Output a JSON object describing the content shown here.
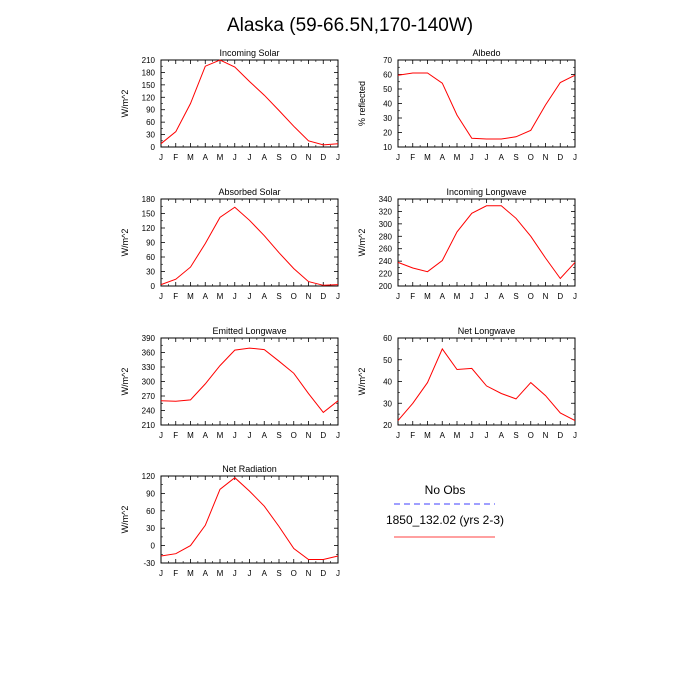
{
  "title": "Alaska (59-66.5N,170-140W)",
  "months": [
    "J",
    "F",
    "M",
    "A",
    "M",
    "J",
    "J",
    "A",
    "S",
    "O",
    "N",
    "D",
    "J"
  ],
  "chart_data": [
    {
      "type": "line",
      "title": "Incoming Solar",
      "xlabel": "",
      "ylabel": "W/m^2",
      "categories": [
        "J",
        "F",
        "M",
        "A",
        "M",
        "J",
        "J",
        "A",
        "S",
        "O",
        "N",
        "D",
        "J"
      ],
      "ylim": [
        0,
        210
      ],
      "yticks": [
        0,
        30,
        60,
        90,
        120,
        150,
        180,
        210
      ],
      "series": [
        {
          "name": "1850_132.02 (yrs 2-3)",
          "color": "#ff0000",
          "values": [
            8,
            37,
            105,
            195,
            210,
            193,
            158,
            125,
            88,
            50,
            15,
            5,
            8
          ]
        }
      ]
    },
    {
      "type": "line",
      "title": "Albedo",
      "xlabel": "",
      "ylabel": "% reflected",
      "categories": [
        "J",
        "F",
        "M",
        "A",
        "M",
        "J",
        "J",
        "A",
        "S",
        "O",
        "N",
        "D",
        "J"
      ],
      "ylim": [
        10,
        70
      ],
      "yticks": [
        10,
        20,
        30,
        40,
        50,
        60,
        70
      ],
      "series": [
        {
          "name": "1850_132.02 (yrs 2-3)",
          "color": "#ff0000",
          "values": [
            59.5,
            61,
            61,
            54,
            32,
            16,
            15.5,
            15.5,
            17,
            21.5,
            39,
            54.5,
            59.5
          ]
        }
      ]
    },
    {
      "type": "line",
      "title": "Absorbed Solar",
      "xlabel": "",
      "ylabel": "W/m^2",
      "categories": [
        "J",
        "F",
        "M",
        "A",
        "M",
        "J",
        "J",
        "A",
        "S",
        "O",
        "N",
        "D",
        "J"
      ],
      "ylim": [
        0,
        180
      ],
      "yticks": [
        0,
        30,
        60,
        90,
        120,
        150,
        180
      ],
      "series": [
        {
          "name": "1850_132.02 (yrs 2-3)",
          "color": "#ff0000",
          "values": [
            3,
            14,
            39,
            88,
            142,
            163,
            136,
            104,
            69,
            36,
            9,
            1.5,
            3
          ]
        }
      ]
    },
    {
      "type": "line",
      "title": "Incoming Longwave",
      "xlabel": "",
      "ylabel": "W/m^2",
      "categories": [
        "J",
        "F",
        "M",
        "A",
        "M",
        "J",
        "J",
        "A",
        "S",
        "O",
        "N",
        "D",
        "J"
      ],
      "ylim": [
        200,
        340
      ],
      "yticks": [
        200,
        220,
        240,
        260,
        280,
        300,
        320,
        340
      ],
      "series": [
        {
          "name": "1850_132.02 (yrs 2-3)",
          "color": "#ff0000",
          "values": [
            238,
            229,
            223,
            241,
            287,
            317,
            329,
            329,
            309,
            280,
            245,
            212,
            238
          ]
        }
      ]
    },
    {
      "type": "line",
      "title": "Emitted Longwave",
      "xlabel": "",
      "ylabel": "W/m^2",
      "categories": [
        "J",
        "F",
        "M",
        "A",
        "M",
        "J",
        "J",
        "A",
        "S",
        "O",
        "N",
        "D",
        "J"
      ],
      "ylim": [
        210,
        390
      ],
      "yticks": [
        210,
        240,
        270,
        300,
        330,
        360,
        390
      ],
      "series": [
        {
          "name": "1850_132.02 (yrs 2-3)",
          "color": "#ff0000",
          "values": [
            260,
            259,
            262,
            295,
            333,
            365,
            369,
            366,
            342,
            317,
            275,
            236,
            260
          ]
        }
      ]
    },
    {
      "type": "line",
      "title": "Net Longwave",
      "xlabel": "",
      "ylabel": "W/m^2",
      "categories": [
        "J",
        "F",
        "M",
        "A",
        "M",
        "J",
        "J",
        "A",
        "S",
        "O",
        "N",
        "D",
        "J"
      ],
      "ylim": [
        20,
        60
      ],
      "yticks": [
        20,
        30,
        40,
        50,
        60
      ],
      "series": [
        {
          "name": "1850_132.02 (yrs 2-3)",
          "color": "#ff0000",
          "values": [
            22,
            30,
            39.5,
            55,
            45.5,
            46,
            38,
            34.5,
            32,
            39.5,
            33.5,
            25.5,
            22
          ]
        }
      ]
    },
    {
      "type": "line",
      "title": "Net Radiation",
      "xlabel": "",
      "ylabel": "W/m^2",
      "categories": [
        "J",
        "F",
        "M",
        "A",
        "M",
        "J",
        "J",
        "A",
        "S",
        "O",
        "N",
        "D",
        "J"
      ],
      "ylim": [
        -30,
        120
      ],
      "yticks": [
        -30,
        0,
        30,
        60,
        90,
        120
      ],
      "series": [
        {
          "name": "1850_132.02 (yrs 2-3)",
          "color": "#ff0000",
          "values": [
            -18,
            -14,
            0,
            35,
            97,
            117,
            94,
            68,
            33,
            -5,
            -24,
            -24,
            -18
          ]
        }
      ]
    }
  ],
  "legend": [
    {
      "label": "No Obs",
      "color": "#0000ff",
      "style": "dashed"
    },
    {
      "label": "1850_132.02 (yrs 2-3)",
      "color": "#ff0000",
      "style": "solid"
    }
  ]
}
